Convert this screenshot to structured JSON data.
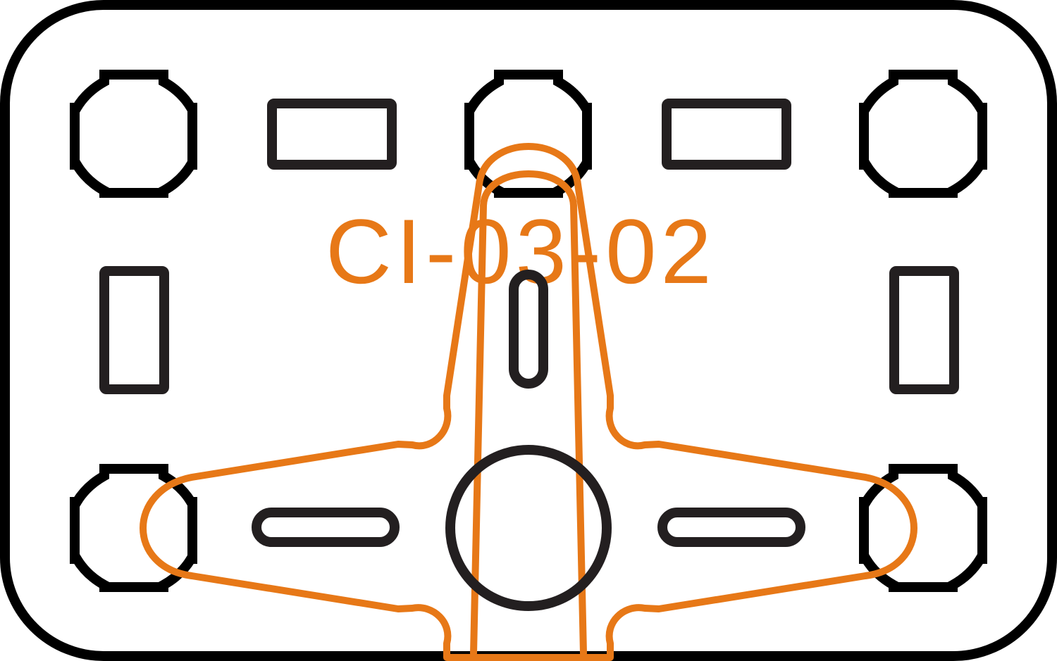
{
  "part_id": "CI-03-02",
  "colors": {
    "outline": "#000000",
    "part_outline": "#e77817",
    "background": "#ffffff"
  }
}
